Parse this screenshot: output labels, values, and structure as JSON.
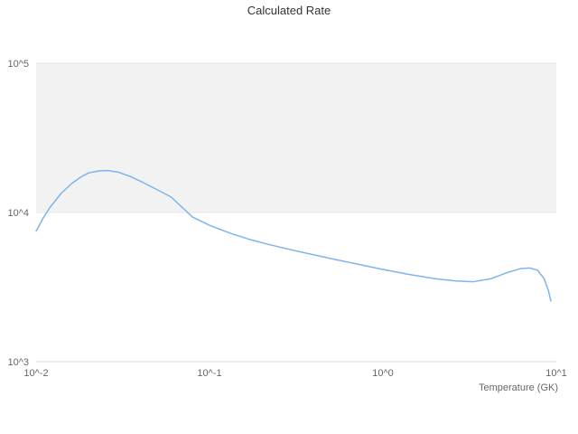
{
  "chart_data": {
    "type": "line",
    "title": "Calculated Rate",
    "xlabel": "Temperature (GK)",
    "ylabel": "",
    "x_scale": "log",
    "y_scale": "log",
    "xlim": [
      0.01,
      10
    ],
    "ylim": [
      1000,
      100000
    ],
    "grid": "horizontal-bands",
    "legend": "none",
    "x_ticks": [
      {
        "value": 0.01,
        "label": "10^-2"
      },
      {
        "value": 0.1,
        "label": "10^-1"
      },
      {
        "value": 1,
        "label": "10^0"
      },
      {
        "value": 10,
        "label": "10^1"
      }
    ],
    "y_ticks": [
      {
        "value": 1000,
        "label": "10^3"
      },
      {
        "value": 10000,
        "label": "10^4"
      },
      {
        "value": 100000,
        "label": "10^5"
      }
    ],
    "band": {
      "from": 10000,
      "to": 100000,
      "color": "#f2f2f2"
    },
    "colors": {
      "line": "#7cb5ec",
      "axis_line": "#d8d8d8",
      "grid_line": "#e6e6e6",
      "title_text": "#333333",
      "tick_text": "#666666"
    },
    "series": [
      {
        "name": "Calculated Rate",
        "color": "#7cb5ec",
        "x": [
          0.01,
          0.011,
          0.012,
          0.014,
          0.016,
          0.018,
          0.02,
          0.023,
          0.026,
          0.03,
          0.035,
          0.04,
          0.05,
          0.06,
          0.08,
          0.1,
          0.13,
          0.17,
          0.22,
          0.3,
          0.4,
          0.55,
          0.75,
          1.0,
          1.4,
          2.0,
          2.6,
          3.3,
          4.2,
          5.2,
          6.2,
          7.0,
          7.8,
          8.5,
          9.0,
          9.3
        ],
        "y": [
          7500,
          9200,
          10800,
          13500,
          15600,
          17200,
          18400,
          19000,
          19100,
          18600,
          17400,
          16200,
          14200,
          12700,
          9300,
          8200,
          7300,
          6600,
          6100,
          5600,
          5200,
          4800,
          4450,
          4150,
          3850,
          3600,
          3480,
          3430,
          3600,
          3950,
          4200,
          4250,
          4100,
          3600,
          3000,
          2550
        ]
      }
    ]
  }
}
